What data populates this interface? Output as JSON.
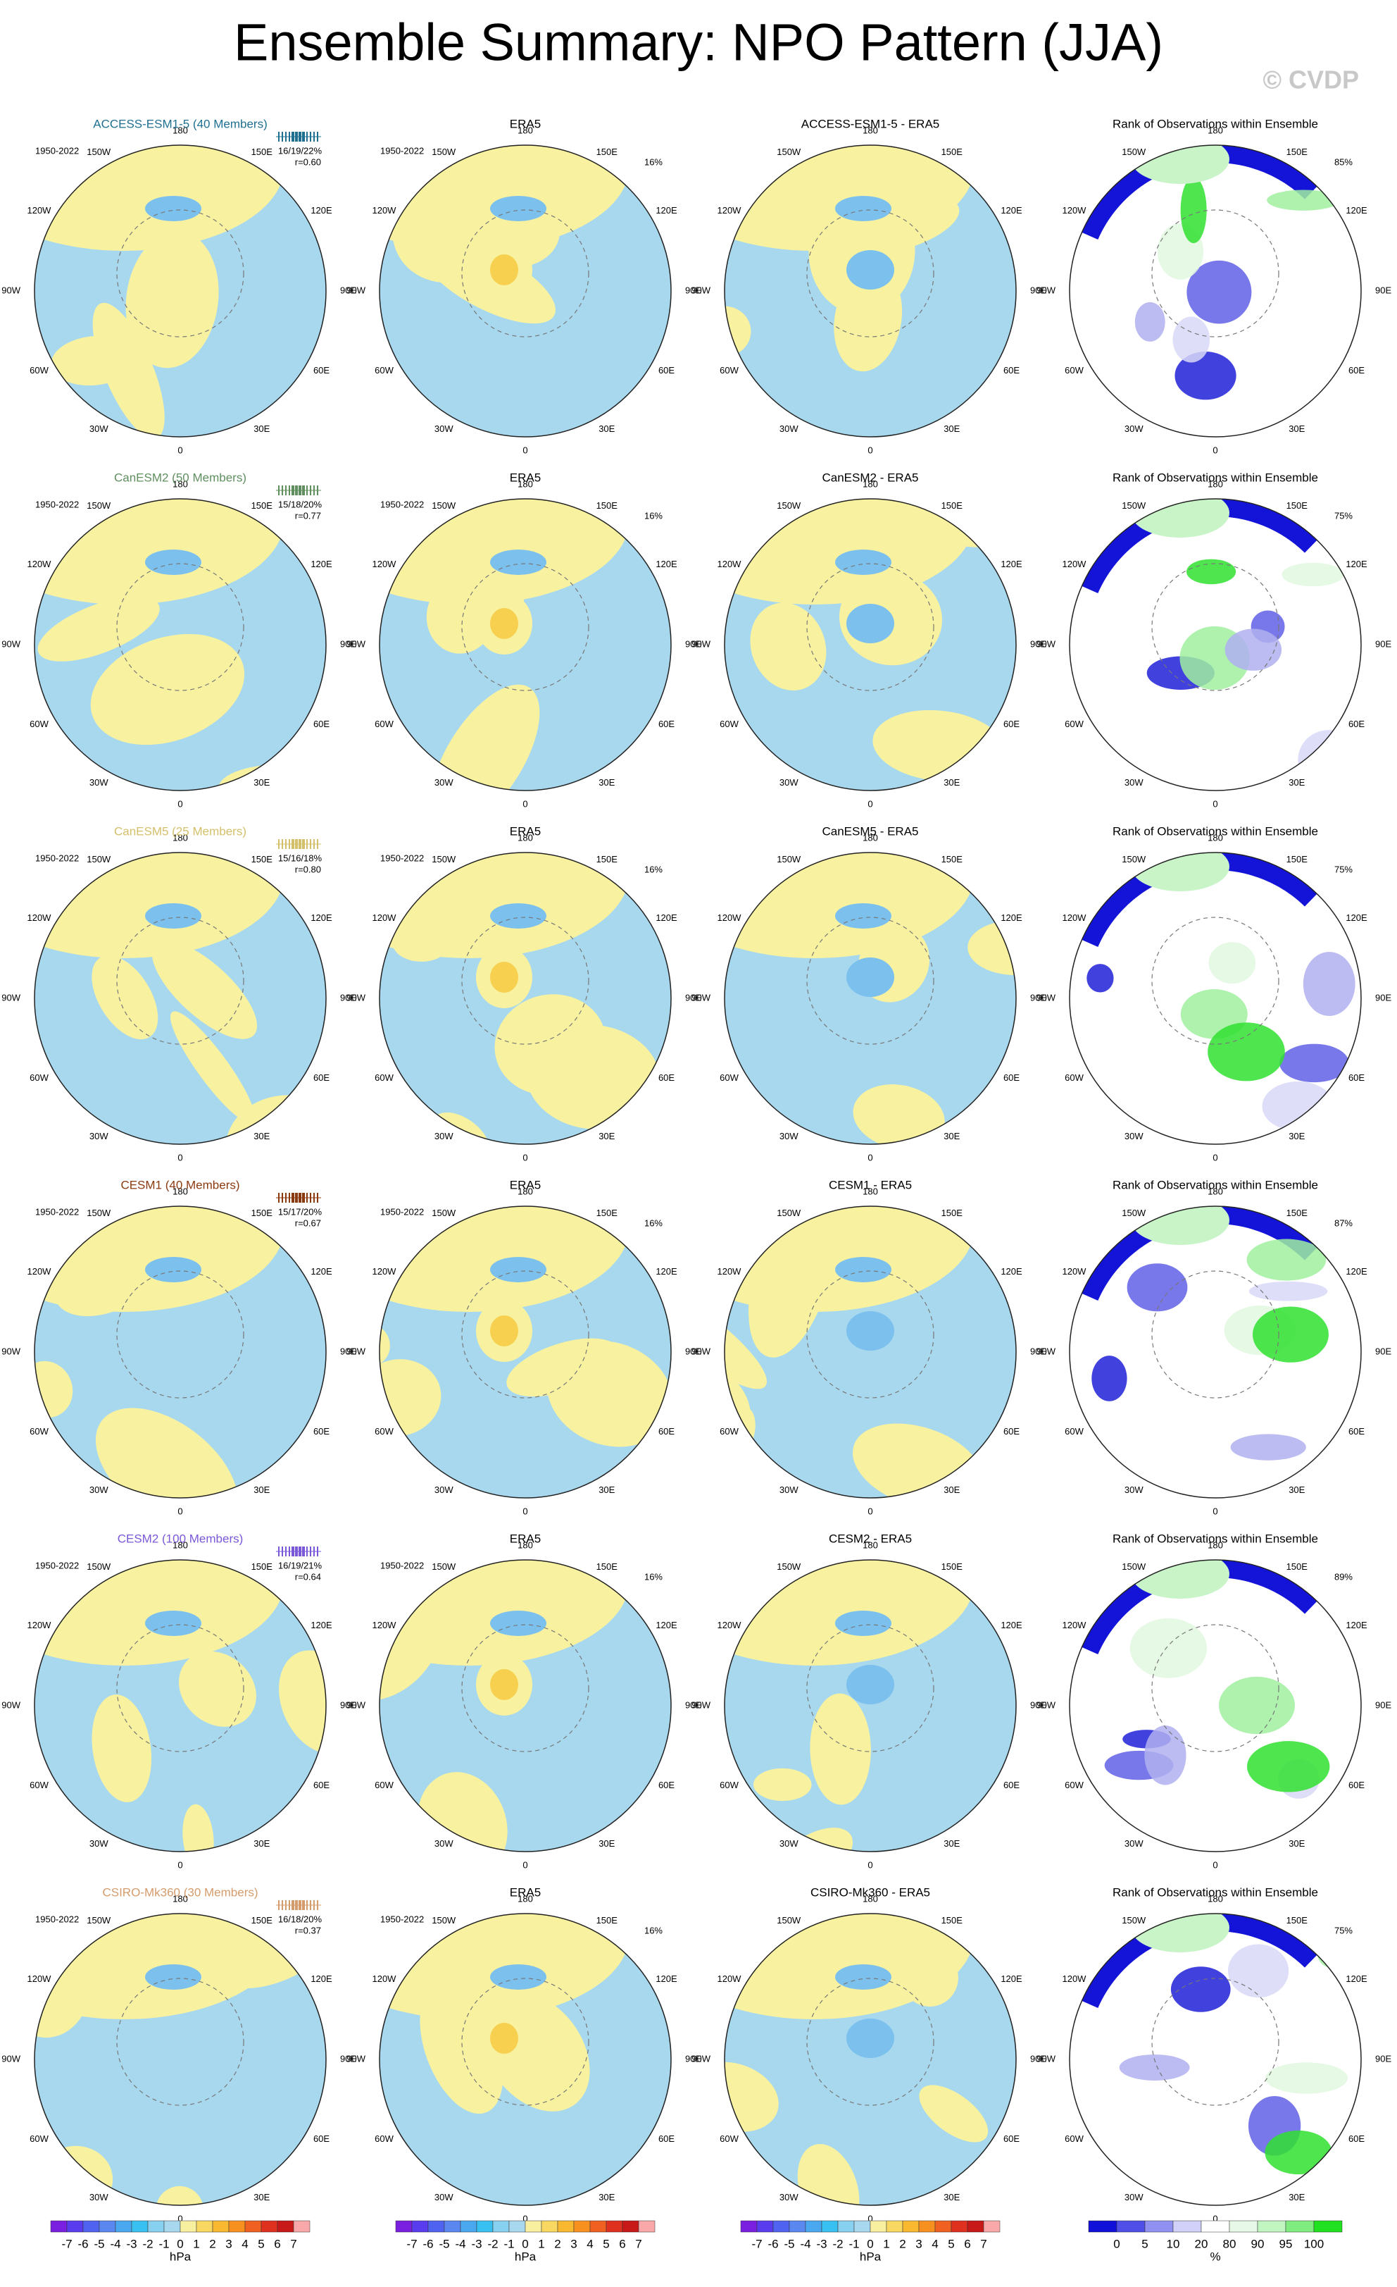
{
  "title": "Ensemble Summary: NPO Pattern (JJA)",
  "watermark": "© CVDP",
  "period": "1950-2022",
  "obs_title": "ERA5",
  "obs_pct": "16%",
  "rank_title": "Rank of Observations within Ensemble",
  "longitudes": [
    "0",
    "30E",
    "60E",
    "90E",
    "120E",
    "150E",
    "180",
    "150W",
    "120W",
    "90W",
    "60W",
    "30W"
  ],
  "rows": [
    {
      "model": "ACCESS-ESM1-5 (40 Members)",
      "color": "#1f7090",
      "stats": "16/19/22%",
      "r": "r=0.60",
      "diff_title": "ACCESS-ESM1-5 - ERA5",
      "rank_pct": "85%"
    },
    {
      "model": "CanESM2 (50 Members)",
      "color": "#5f8f5f",
      "stats": "15/18/20%",
      "r": "r=0.77",
      "diff_title": "CanESM2 - ERA5",
      "rank_pct": "75%"
    },
    {
      "model": "CanESM5 (25 Members)",
      "color": "#d4bf6a",
      "stats": "15/16/18%",
      "r": "r=0.80",
      "diff_title": "CanESM5 - ERA5",
      "rank_pct": "75%"
    },
    {
      "model": "CESM1 (40 Members)",
      "color": "#8b3a10",
      "stats": "15/17/20%",
      "r": "r=0.67",
      "diff_title": "CESM1 - ERA5",
      "rank_pct": "87%"
    },
    {
      "model": "CESM2 (100 Members)",
      "color": "#7a58d8",
      "stats": "16/19/21%",
      "r": "r=0.64",
      "diff_title": "CESM2 - ERA5",
      "rank_pct": "89%"
    },
    {
      "model": "CSIRO-Mk360 (30 Members)",
      "color": "#d49c6c",
      "stats": "16/18/20%",
      "r": "r=0.37",
      "diff_title": "CSIRO-Mk360 - ERA5",
      "rank_pct": "75%"
    }
  ],
  "colorbars": {
    "hpa": {
      "labels": [
        -7,
        -6,
        -5,
        -4,
        -3,
        -2,
        -1,
        0,
        1,
        2,
        3,
        4,
        5,
        6,
        7
      ],
      "unit": "hPa"
    },
    "rank": {
      "labels": [
        0,
        5,
        10,
        20,
        80,
        90,
        95,
        100
      ],
      "unit": "%"
    }
  }
}
